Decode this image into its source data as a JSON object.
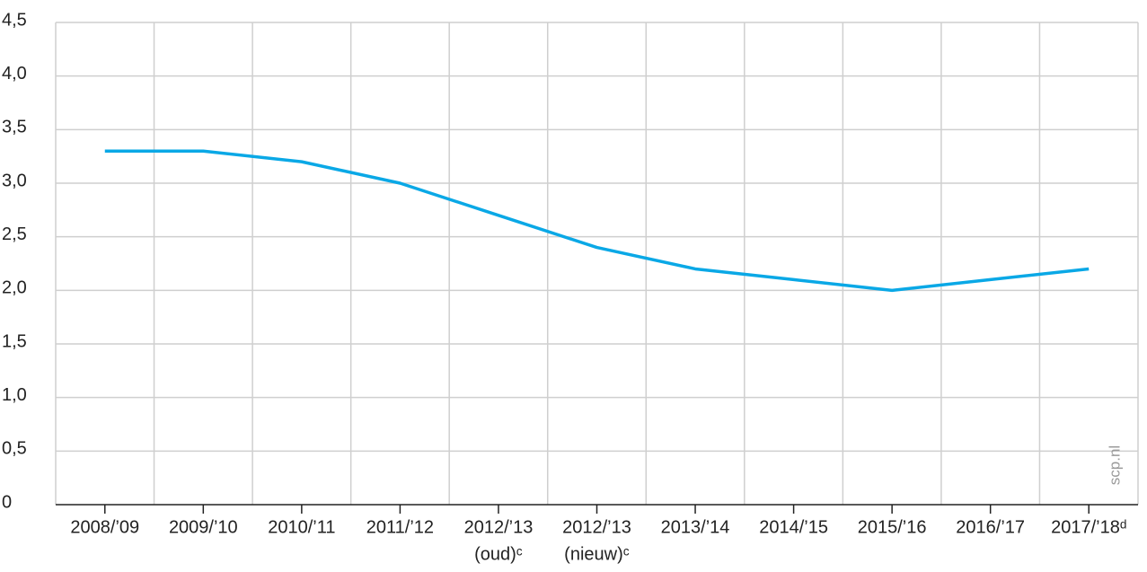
{
  "chart_data": {
    "type": "line",
    "categories": [
      [
        "2008/’09"
      ],
      [
        "2009/’10"
      ],
      [
        "2010/’11"
      ],
      [
        "2011/’12"
      ],
      [
        "2012/’13",
        "(oud)ᶜ"
      ],
      [
        "2012/’13",
        "(nieuw)ᶜ"
      ],
      [
        "2013/’14"
      ],
      [
        "2014/’15"
      ],
      [
        "2015/’16"
      ],
      [
        "2016/’17"
      ],
      [
        "2017/’18ᵈ"
      ]
    ],
    "series": [
      {
        "color": "#0aa8e6",
        "values": [
          3.3,
          3.3,
          3.2,
          3.0,
          2.7,
          2.4,
          2.2,
          2.1,
          2.0,
          2.1,
          2.2
        ]
      }
    ],
    "ylim": [
      0,
      4.5
    ],
    "yticks": [
      0,
      {
        "value": 0.5,
        "label": "0,5"
      },
      {
        "value": 1.0,
        "label": "1,0"
      },
      {
        "value": 1.5,
        "label": "1,5"
      },
      {
        "value": 2.0,
        "label": "2,0"
      },
      {
        "value": 2.5,
        "label": "2,5"
      },
      {
        "value": 3.0,
        "label": "3,0"
      },
      {
        "value": 3.5,
        "label": "3,5"
      },
      {
        "value": 4.0,
        "label": "4,0"
      },
      {
        "value": 4.5,
        "label": "4,5"
      }
    ],
    "grid": true,
    "watermark": "scp.nl"
  }
}
